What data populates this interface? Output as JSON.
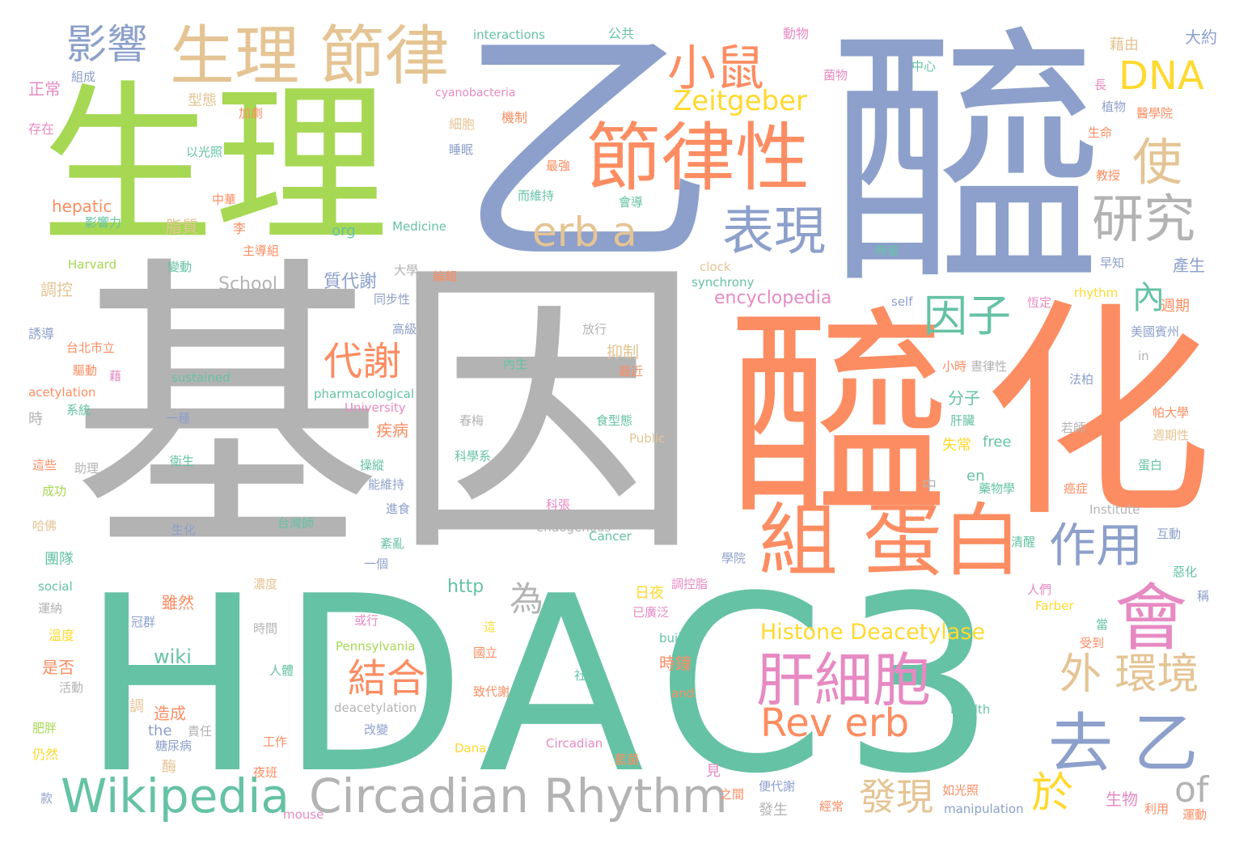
{
  "colors": {
    "gray": "#b3b3b3",
    "green": "#66c2a5",
    "lime": "#a6d854",
    "orange": "#fc8d62",
    "blue": "#8da0cb",
    "pink": "#e78ac3",
    "yellow": "#ffd92f",
    "tan": "#e5c494"
  },
  "words": [
    {
      "t": "基因",
      "c": "gray"
    },
    {
      "t": "HDAC3",
      "c": "green"
    },
    {
      "t": "乙",
      "c": "blue"
    },
    {
      "t": "醯",
      "c": "blue"
    },
    {
      "t": "生理",
      "c": "lime"
    },
    {
      "t": "醯",
      "c": "orange"
    },
    {
      "t": "化",
      "c": "orange"
    },
    {
      "t": "節律性",
      "c": "orange"
    },
    {
      "t": "生理 節律",
      "c": "tan"
    },
    {
      "t": "組 蛋白",
      "c": "orange"
    },
    {
      "t": "Circadian Rhythm",
      "c": "gray"
    },
    {
      "t": "Wikipedia",
      "c": "green"
    },
    {
      "t": "肝細胞",
      "c": "pink"
    },
    {
      "t": "去 乙",
      "c": "blue"
    },
    {
      "t": "表現",
      "c": "blue"
    },
    {
      "t": "小鼠",
      "c": "orange"
    },
    {
      "t": "影響",
      "c": "blue"
    },
    {
      "t": "研究",
      "c": "gray"
    },
    {
      "t": "會",
      "c": "pink"
    },
    {
      "t": "外 環境",
      "c": "tan"
    },
    {
      "t": "Rev erb",
      "c": "orange"
    },
    {
      "t": "erb a",
      "c": "tan"
    },
    {
      "t": "DNA",
      "c": "yellow"
    },
    {
      "t": "作用",
      "c": "blue"
    },
    {
      "t": "因子",
      "c": "green"
    },
    {
      "t": "使",
      "c": "tan"
    },
    {
      "t": "結合",
      "c": "orange"
    },
    {
      "t": "代謝",
      "c": "orange"
    },
    {
      "t": "Zeitgeber",
      "c": "yellow"
    },
    {
      "t": "發現",
      "c": "tan"
    },
    {
      "t": "於",
      "c": "yellow"
    },
    {
      "t": "of",
      "c": "gray"
    },
    {
      "t": "為",
      "c": "gray"
    },
    {
      "t": "內",
      "c": "green"
    },
    {
      "t": "Histone Deacetylase",
      "c": "yellow"
    },
    {
      "t": "encyclopedia",
      "c": "pink"
    },
    {
      "t": "School",
      "c": "gray"
    },
    {
      "t": "質代謝",
      "c": "blue"
    },
    {
      "t": "wiki",
      "c": "green"
    },
    {
      "t": "http",
      "c": "green"
    },
    {
      "t": "hepatic",
      "c": "orange"
    },
    {
      "t": "org",
      "c": "green"
    },
    {
      "t": "interactions",
      "c": "green"
    },
    {
      "t": "公共",
      "c": "green"
    },
    {
      "t": "動物",
      "c": "pink"
    },
    {
      "t": "藉由",
      "c": "tan"
    },
    {
      "t": "大約",
      "c": "blue"
    },
    {
      "t": "正常",
      "c": "pink"
    },
    {
      "t": "組成",
      "c": "blue"
    },
    {
      "t": "型態",
      "c": "tan"
    },
    {
      "t": "cyanobacteria",
      "c": "pink"
    },
    {
      "t": "菌物",
      "c": "pink"
    },
    {
      "t": "中心",
      "c": "green"
    },
    {
      "t": "長",
      "c": "pink"
    },
    {
      "t": "植物",
      "c": "blue"
    },
    {
      "t": "醫學院",
      "c": "orange"
    },
    {
      "t": "存在",
      "c": "pink"
    },
    {
      "t": "加劇",
      "c": "orange"
    },
    {
      "t": "細胞",
      "c": "tan"
    },
    {
      "t": "機制",
      "c": "orange"
    },
    {
      "t": "睡眠",
      "c": "blue"
    },
    {
      "t": "生命",
      "c": "orange"
    },
    {
      "t": "以光照",
      "c": "green"
    },
    {
      "t": "最強",
      "c": "orange"
    },
    {
      "t": "教授",
      "c": "orange"
    },
    {
      "t": "而維持",
      "c": "green"
    },
    {
      "t": "會導",
      "c": "green"
    },
    {
      "t": "中華",
      "c": "orange"
    },
    {
      "t": "影響力",
      "c": "green"
    },
    {
      "t": "脂質",
      "c": "tan"
    },
    {
      "t": "李",
      "c": "orange"
    },
    {
      "t": "Medicine",
      "c": "green"
    },
    {
      "t": "Harvard",
      "c": "lime"
    },
    {
      "t": "主導組",
      "c": "orange"
    },
    {
      "t": "時差",
      "c": "green"
    },
    {
      "t": "變動",
      "c": "green"
    },
    {
      "t": "clock",
      "c": "tan"
    },
    {
      "t": "早知",
      "c": "blue"
    },
    {
      "t": "產生",
      "c": "blue"
    },
    {
      "t": "大學",
      "c": "gray"
    },
    {
      "t": "編輯",
      "c": "orange"
    },
    {
      "t": "synchrony",
      "c": "green"
    },
    {
      "t": "調控",
      "c": "tan"
    },
    {
      "t": "同步性",
      "c": "blue"
    },
    {
      "t": "self",
      "c": "blue"
    },
    {
      "t": "恆定",
      "c": "pink"
    },
    {
      "t": "rhythm",
      "c": "yellow"
    },
    {
      "t": "週期",
      "c": "orange"
    },
    {
      "t": "高級",
      "c": "blue"
    },
    {
      "t": "誘導",
      "c": "blue"
    },
    {
      "t": "放行",
      "c": "gray"
    },
    {
      "t": "美國賓州",
      "c": "blue"
    },
    {
      "t": "台北市立",
      "c": "orange"
    },
    {
      "t": "抑制",
      "c": "tan"
    },
    {
      "t": "內生",
      "c": "green"
    },
    {
      "t": "驅動",
      "c": "orange"
    },
    {
      "t": "藉",
      "c": "pink"
    },
    {
      "t": "最近",
      "c": "orange"
    },
    {
      "t": "sustained",
      "c": "green"
    },
    {
      "t": "小時",
      "c": "orange"
    },
    {
      "t": "晝律性",
      "c": "gray"
    },
    {
      "t": "in",
      "c": "gray"
    },
    {
      "t": "acetylation",
      "c": "orange"
    },
    {
      "t": "pharmacological",
      "c": "green"
    },
    {
      "t": "University",
      "c": "pink"
    },
    {
      "t": "法柏",
      "c": "blue"
    },
    {
      "t": "系統",
      "c": "green"
    },
    {
      "t": "時",
      "c": "gray"
    },
    {
      "t": "一種",
      "c": "blue"
    },
    {
      "t": "春梅",
      "c": "gray"
    },
    {
      "t": "食型態",
      "c": "green"
    },
    {
      "t": "分子",
      "c": "green"
    },
    {
      "t": "疾病",
      "c": "orange"
    },
    {
      "t": "肝臟",
      "c": "green"
    },
    {
      "t": "帕大學",
      "c": "orange"
    },
    {
      "t": "若師",
      "c": "gray"
    },
    {
      "t": "Public",
      "c": "tan"
    },
    {
      "t": "週期性",
      "c": "tan"
    },
    {
      "t": "衛生",
      "c": "green"
    },
    {
      "t": "科學系",
      "c": "green"
    },
    {
      "t": "失常",
      "c": "yellow"
    },
    {
      "t": "free",
      "c": "green"
    },
    {
      "t": "這些",
      "c": "orange"
    },
    {
      "t": "助理",
      "c": "gray"
    },
    {
      "t": "蛋白",
      "c": "green"
    },
    {
      "t": "成功",
      "c": "lime"
    },
    {
      "t": "操縱",
      "c": "green"
    },
    {
      "t": "能維持",
      "c": "blue"
    },
    {
      "t": "中",
      "c": "gray"
    },
    {
      "t": "en",
      "c": "green"
    },
    {
      "t": "藥物學",
      "c": "green"
    },
    {
      "t": "癌症",
      "c": "orange"
    },
    {
      "t": "哈佛",
      "c": "tan"
    },
    {
      "t": "台灣師",
      "c": "green"
    },
    {
      "t": "進食",
      "c": "blue"
    },
    {
      "t": "科張",
      "c": "pink"
    },
    {
      "t": "Institute",
      "c": "gray"
    },
    {
      "t": "生化",
      "c": "blue"
    },
    {
      "t": "endogenous",
      "c": "gray"
    },
    {
      "t": "Cancer",
      "c": "green"
    },
    {
      "t": "紊亂",
      "c": "green"
    },
    {
      "t": "清醒",
      "c": "green"
    },
    {
      "t": "互動",
      "c": "blue"
    },
    {
      "t": "團隊",
      "c": "green"
    },
    {
      "t": "一個",
      "c": "blue"
    },
    {
      "t": "學院",
      "c": "blue"
    },
    {
      "t": "惡化",
      "c": "green"
    },
    {
      "t": "social",
      "c": "green"
    },
    {
      "t": "濃度",
      "c": "tan"
    },
    {
      "t": "調控脂",
      "c": "pink"
    },
    {
      "t": "人們",
      "c": "pink"
    },
    {
      "t": "稱",
      "c": "blue"
    },
    {
      "t": "運納",
      "c": "gray"
    },
    {
      "t": "雖然",
      "c": "orange"
    },
    {
      "t": "日夜",
      "c": "yellow"
    },
    {
      "t": "已廣泛",
      "c": "pink"
    },
    {
      "t": "Farber",
      "c": "yellow"
    },
    {
      "t": "溫度",
      "c": "yellow"
    },
    {
      "t": "冠群",
      "c": "blue"
    },
    {
      "t": "時間",
      "c": "gray"
    },
    {
      "t": "或行",
      "c": "pink"
    },
    {
      "t": "這",
      "c": "yellow"
    },
    {
      "t": "當",
      "c": "green"
    },
    {
      "t": "是否",
      "c": "orange"
    },
    {
      "t": "Pennsylvania",
      "c": "lime"
    },
    {
      "t": "國立",
      "c": "orange"
    },
    {
      "t": "built",
      "c": "green"
    },
    {
      "t": "受到",
      "c": "orange"
    },
    {
      "t": "人體",
      "c": "green"
    },
    {
      "t": "時鐘",
      "c": "orange"
    },
    {
      "t": "活動",
      "c": "gray"
    },
    {
      "t": "社會",
      "c": "green"
    },
    {
      "t": "調",
      "c": "tan"
    },
    {
      "t": "造成",
      "c": "orange"
    },
    {
      "t": "致代謝",
      "c": "orange"
    },
    {
      "t": "and",
      "c": "orange"
    },
    {
      "t": "the",
      "c": "blue"
    },
    {
      "t": "責任",
      "c": "gray"
    },
    {
      "t": "deacetylation",
      "c": "gray"
    },
    {
      "t": "Health",
      "c": "green"
    },
    {
      "t": "肥胖",
      "c": "lime"
    },
    {
      "t": "糖尿病",
      "c": "blue"
    },
    {
      "t": "改變",
      "c": "blue"
    },
    {
      "t": "Circadian",
      "c": "pink"
    },
    {
      "t": "仍然",
      "c": "yellow"
    },
    {
      "t": "工作",
      "c": "orange"
    },
    {
      "t": "酶",
      "c": "tan"
    },
    {
      "t": "Dana",
      "c": "yellow"
    },
    {
      "t": "藍菌",
      "c": "orange"
    },
    {
      "t": "夜班",
      "c": "orange"
    },
    {
      "t": "見",
      "c": "pink"
    },
    {
      "t": "款",
      "c": "blue"
    },
    {
      "t": "便代謝",
      "c": "blue"
    },
    {
      "t": "之間",
      "c": "orange"
    },
    {
      "t": "如光照",
      "c": "orange"
    },
    {
      "t": "生物",
      "c": "pink"
    },
    {
      "t": "經常",
      "c": "orange"
    },
    {
      "t": "mouse",
      "c": "pink"
    },
    {
      "t": "發生",
      "c": "gray"
    },
    {
      "t": "manipulation",
      "c": "blue"
    },
    {
      "t": "利用",
      "c": "orange"
    },
    {
      "t": "運動",
      "c": "orange"
    }
  ]
}
